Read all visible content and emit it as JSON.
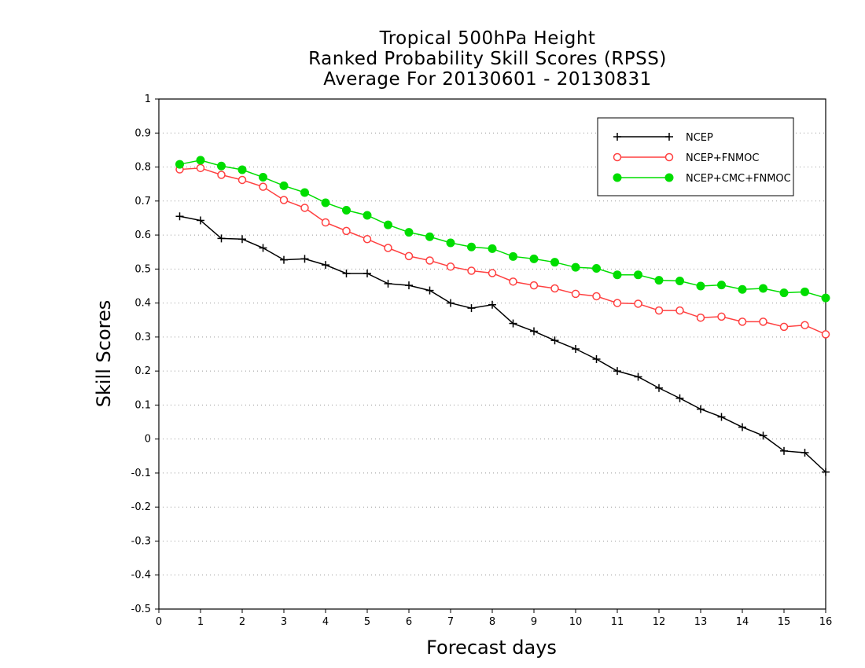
{
  "chart_data": {
    "type": "line",
    "title_lines": [
      "Tropical 500hPa Height",
      "Ranked Probability Skill Scores (RPSS)",
      "Average For 20130601 - 20130831"
    ],
    "xlabel": "Forecast days",
    "ylabel": "Skill Scores",
    "xlim": [
      0,
      16
    ],
    "ylim": [
      -0.5,
      1
    ],
    "x_ticks": [
      "0",
      "1",
      "2",
      "3",
      "4",
      "5",
      "6",
      "7",
      "8",
      "9",
      "10",
      "11",
      "12",
      "13",
      "14",
      "15",
      "16"
    ],
    "y_ticks": [
      "1",
      "0.9",
      "0.8",
      "0.7",
      "0.6",
      "0.5",
      "0.4",
      "0.3",
      "0.2",
      "0.1",
      "0",
      "-0.1",
      "-0.2",
      "-0.3",
      "-0.4",
      "-0.5"
    ],
    "grid": "horizontal dotted",
    "legend_position": "top-right",
    "x": [
      0.5,
      1,
      1.5,
      2,
      2.5,
      3,
      3.5,
      4,
      4.5,
      5,
      5.5,
      6,
      6.5,
      7,
      7.5,
      8,
      8.5,
      9,
      9.5,
      10,
      10.5,
      11,
      11.5,
      12,
      12.5,
      13,
      13.5,
      14,
      14.5,
      15,
      15.5,
      16
    ],
    "series": [
      {
        "name": "NCEP",
        "color": "#000000",
        "marker": "plus",
        "values": [
          0.655,
          0.643,
          0.59,
          0.588,
          0.562,
          0.527,
          0.53,
          0.512,
          0.487,
          0.487,
          0.457,
          0.452,
          0.437,
          0.4,
          0.385,
          0.395,
          0.34,
          0.317,
          0.29,
          0.265,
          0.235,
          0.2,
          0.183,
          0.15,
          0.12,
          0.088,
          0.065,
          0.035,
          0.01,
          -0.035,
          -0.04,
          -0.097
        ]
      },
      {
        "name": "NCEP+FNMOC",
        "color": "#ff4040",
        "marker": "open-circle",
        "values": [
          0.793,
          0.797,
          0.777,
          0.762,
          0.742,
          0.703,
          0.68,
          0.637,
          0.612,
          0.588,
          0.562,
          0.538,
          0.525,
          0.507,
          0.495,
          0.488,
          0.463,
          0.452,
          0.443,
          0.427,
          0.42,
          0.4,
          0.398,
          0.378,
          0.378,
          0.357,
          0.36,
          0.345,
          0.345,
          0.33,
          0.335,
          0.308
        ]
      },
      {
        "name": "NCEP+CMC+FNMOC",
        "color": "#00dd00",
        "marker": "filled-circle",
        "values": [
          0.808,
          0.82,
          0.803,
          0.792,
          0.77,
          0.745,
          0.725,
          0.695,
          0.673,
          0.658,
          0.63,
          0.608,
          0.595,
          0.577,
          0.565,
          0.56,
          0.537,
          0.53,
          0.52,
          0.505,
          0.502,
          0.483,
          0.483,
          0.467,
          0.465,
          0.45,
          0.453,
          0.44,
          0.443,
          0.43,
          0.433,
          0.415
        ]
      }
    ]
  }
}
